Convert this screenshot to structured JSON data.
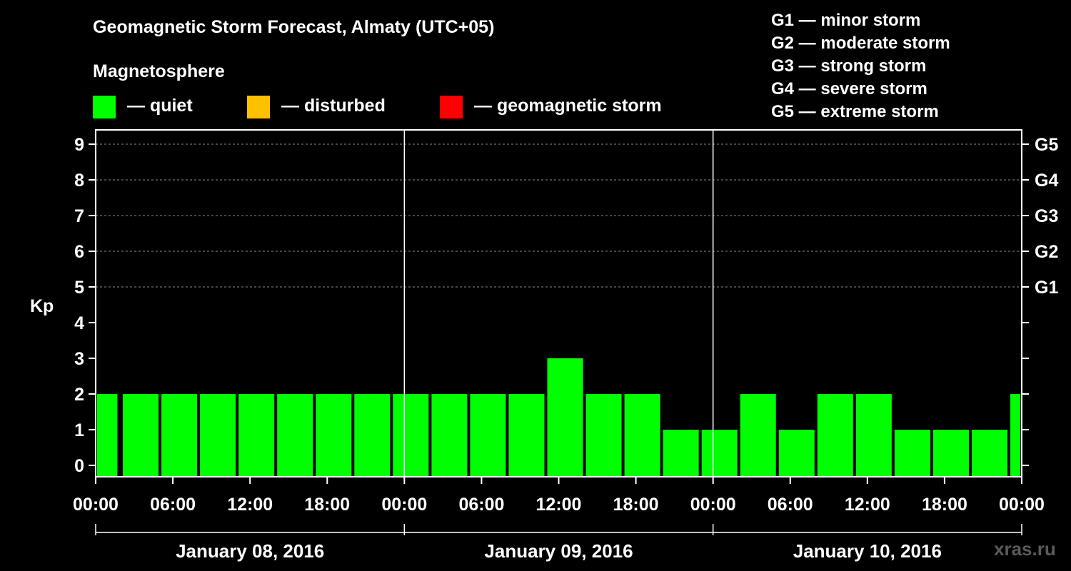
{
  "title": "Geomagnetic Storm Forecast, Almaty (UTC+05)",
  "legend": {
    "heading": "Magnetosphere",
    "items": [
      {
        "label": "— quiet",
        "color": "#00ff00"
      },
      {
        "label": "— disturbed",
        "color": "#ffc000"
      },
      {
        "label": "— geomagnetic storm",
        "color": "#ff0000"
      }
    ]
  },
  "g_scale": [
    "G1 — minor storm",
    "G2 — moderate storm",
    "G3 — strong storm",
    "G4 — severe storm",
    "G5 — extreme storm"
  ],
  "watermark": "xras.ru",
  "chart_data": {
    "type": "bar",
    "title": "Geomagnetic Storm Forecast, Almaty (UTC+05)",
    "ylabel": "Kp",
    "ylim": [
      0,
      9
    ],
    "y_ticks": [
      0,
      1,
      2,
      3,
      4,
      5,
      6,
      7,
      8,
      9
    ],
    "right_axis_labels": [
      {
        "kp": 5,
        "label": "G1"
      },
      {
        "kp": 6,
        "label": "G2"
      },
      {
        "kp": 7,
        "label": "G3"
      },
      {
        "kp": 8,
        "label": "G4"
      },
      {
        "kp": 9,
        "label": "G5"
      }
    ],
    "x_ticks": [
      "00:00",
      "06:00",
      "12:00",
      "18:00",
      "00:00",
      "06:00",
      "12:00",
      "18:00",
      "00:00",
      "06:00",
      "12:00",
      "18:00",
      "00:00"
    ],
    "x_tick_hours": [
      0,
      6,
      12,
      18,
      24,
      30,
      36,
      42,
      48,
      54,
      60,
      66,
      72
    ],
    "x_range_hours": [
      0,
      72
    ],
    "days": [
      {
        "label": "January 08, 2016",
        "start_hour": 0,
        "end_hour": 24
      },
      {
        "label": "January 09, 2016",
        "start_hour": 24,
        "end_hour": 48
      },
      {
        "label": "January 10, 2016",
        "start_hour": 48,
        "end_hour": 72
      }
    ],
    "bars": [
      {
        "start_hour": 0,
        "end_hour": 1.8,
        "kp": 2
      },
      {
        "start_hour": 2,
        "end_hour": 5,
        "kp": 2
      },
      {
        "start_hour": 5,
        "end_hour": 8,
        "kp": 2
      },
      {
        "start_hour": 8,
        "end_hour": 11,
        "kp": 2
      },
      {
        "start_hour": 11,
        "end_hour": 14,
        "kp": 2
      },
      {
        "start_hour": 14,
        "end_hour": 17,
        "kp": 2
      },
      {
        "start_hour": 17,
        "end_hour": 20,
        "kp": 2
      },
      {
        "start_hour": 20,
        "end_hour": 23,
        "kp": 2
      },
      {
        "start_hour": 23,
        "end_hour": 26,
        "kp": 2
      },
      {
        "start_hour": 26,
        "end_hour": 29,
        "kp": 2
      },
      {
        "start_hour": 29,
        "end_hour": 32,
        "kp": 2
      },
      {
        "start_hour": 32,
        "end_hour": 35,
        "kp": 2
      },
      {
        "start_hour": 35,
        "end_hour": 38,
        "kp": 3
      },
      {
        "start_hour": 38,
        "end_hour": 41,
        "kp": 2
      },
      {
        "start_hour": 41,
        "end_hour": 44,
        "kp": 2
      },
      {
        "start_hour": 44,
        "end_hour": 47,
        "kp": 1
      },
      {
        "start_hour": 47,
        "end_hour": 50,
        "kp": 1
      },
      {
        "start_hour": 50,
        "end_hour": 53,
        "kp": 2
      },
      {
        "start_hour": 53,
        "end_hour": 56,
        "kp": 1
      },
      {
        "start_hour": 56,
        "end_hour": 59,
        "kp": 2
      },
      {
        "start_hour": 59,
        "end_hour": 62,
        "kp": 2
      },
      {
        "start_hour": 62,
        "end_hour": 65,
        "kp": 1
      },
      {
        "start_hour": 65,
        "end_hour": 68,
        "kp": 1
      },
      {
        "start_hour": 68,
        "end_hour": 71,
        "kp": 1
      },
      {
        "start_hour": 71,
        "end_hour": 72,
        "kp": 2
      }
    ]
  }
}
